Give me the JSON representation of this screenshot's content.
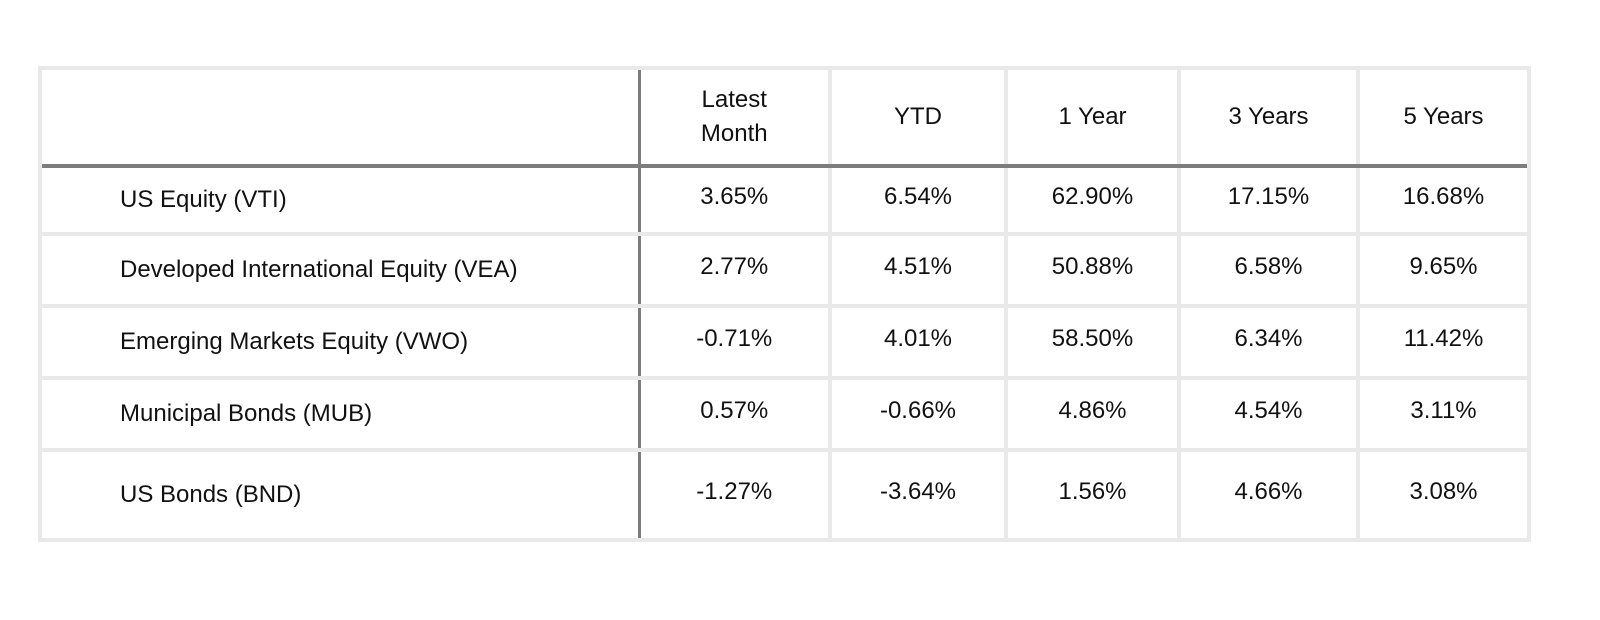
{
  "chart_data": {
    "type": "table",
    "columns": [
      "",
      "Latest Month",
      "YTD",
      "1 Year",
      "3 Years",
      "5 Years"
    ],
    "rows": [
      {
        "label": "US Equity (VTI)",
        "values": [
          "3.65%",
          "6.54%",
          "62.90%",
          "17.15%",
          "16.68%"
        ]
      },
      {
        "label": "Developed International Equity (VEA)",
        "values": [
          "2.77%",
          "4.51%",
          "50.88%",
          "6.58%",
          "9.65%"
        ]
      },
      {
        "label": "Emerging Markets Equity (VWO)",
        "values": [
          "-0.71%",
          "4.01%",
          "58.50%",
          "6.34%",
          "11.42%"
        ]
      },
      {
        "label": "Municipal Bonds (MUB)",
        "values": [
          "0.57%",
          "-0.66%",
          "4.86%",
          "4.54%",
          "3.11%"
        ]
      },
      {
        "label": "US Bonds (BND)",
        "values": [
          "-1.27%",
          "-3.64%",
          "1.56%",
          "4.66%",
          "3.08%"
        ]
      }
    ],
    "colors": {
      "grid": "#e9e9e9",
      "header_rule": "#7d7d7d",
      "text": "#111111"
    }
  }
}
